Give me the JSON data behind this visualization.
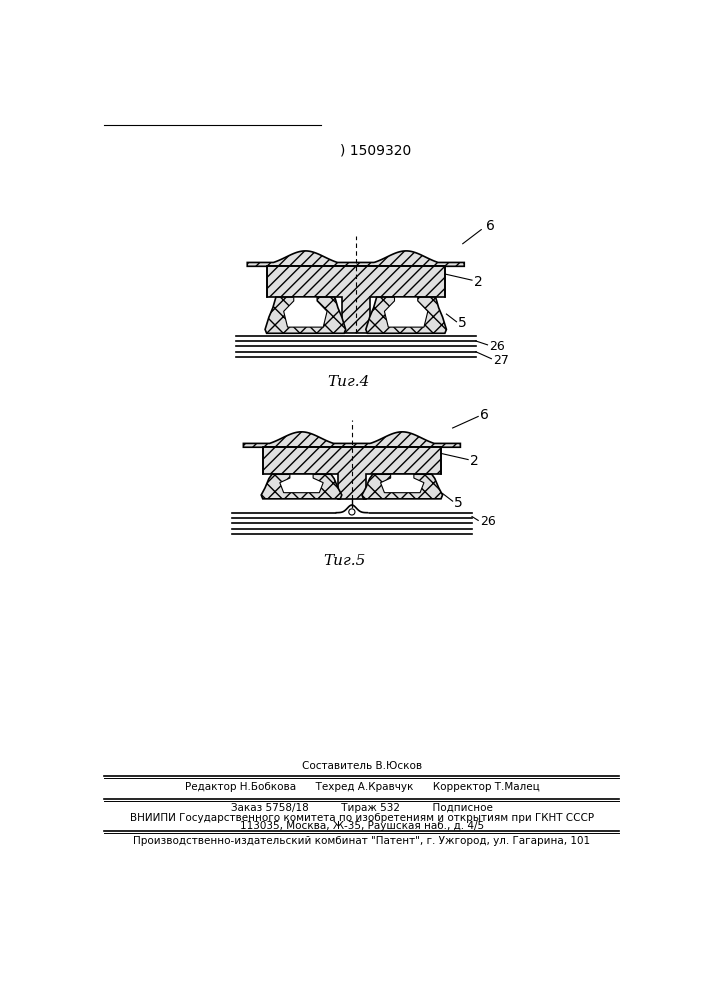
{
  "title": ") 1509320",
  "fig4_label": "Τиг.4",
  "fig5_label": "Τиг.5",
  "bg_color": "#ffffff",
  "line_color": "#000000",
  "footer_line1": "Составитель В.Юсков",
  "footer_line2": "Редактор Н.Бобкова      Техред А.Кравчук      Корректор Т.Малец",
  "footer_line3": "Заказ 5758/18          Тираж 532          Подписное",
  "footer_line4": "ВНИИПИ Государственного комитета по изобретениям и открытиям при ГКНТ СССР",
  "footer_line5": "113035, Москва, Ж-35, Раушская наб., д. 4/5",
  "footer_line6": "Производственно-издательский комбинат \"Патент\", г. Ужгород, ул. Гагарина, 101"
}
